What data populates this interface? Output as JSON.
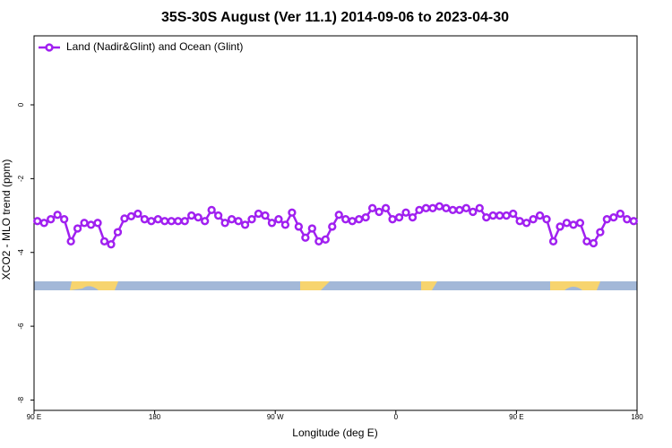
{
  "chart_data": {
    "type": "line",
    "title": "35S-30S August (Ver 11.1)   2014-09-06 to 2023-04-30",
    "x_label": "Longitude (deg E)",
    "y_label": "XCO2 - MLO trend (ppm)",
    "xlim": [
      90,
      540
    ],
    "ylim": [
      -8.28,
      1.87
    ],
    "xticks": [
      {
        "value": 90,
        "label": "90 E"
      },
      180,
      {
        "value": 270,
        "label": "90 W"
      },
      {
        "value": 360,
        "label": "0"
      },
      {
        "value": 450,
        "label": "90 E"
      },
      {
        "value": 540,
        "label": "180"
      }
    ],
    "yticks": [
      0,
      -2,
      -4,
      -6,
      -8
    ],
    "legend": "top-left",
    "x": [
      92.5,
      97.5,
      102.5,
      107.5,
      112.5,
      117.5,
      122.5,
      127.5,
      132.5,
      137.5,
      142.5,
      147.5,
      152.5,
      157.5,
      162.5,
      167.5,
      172.5,
      177.5,
      182.5,
      187.5,
      192.5,
      197.5,
      202.5,
      207.5,
      212.5,
      217.5,
      222.5,
      227.5,
      232.5,
      237.5,
      242.5,
      247.5,
      252.5,
      257.5,
      262.5,
      267.5,
      272.5,
      277.5,
      282.5,
      287.5,
      292.5,
      297.5,
      302.5,
      307.5,
      312.5,
      317.5,
      322.5,
      327.5,
      332.5,
      337.5,
      342.5,
      347.5,
      352.5,
      357.5,
      362.5,
      367.5,
      372.5,
      377.5,
      382.5,
      387.5,
      392.5,
      397.5,
      402.5,
      407.5,
      412.5,
      417.5,
      422.5,
      427.5,
      432.5,
      437.5,
      442.5,
      447.5,
      452.5,
      457.5,
      462.5,
      467.5,
      472.5,
      477.5,
      482.5,
      487.5,
      492.5,
      497.5,
      502.5,
      507.5,
      512.5,
      517.5,
      522.5,
      527.5,
      532.5,
      537.5
    ],
    "series": [
      {
        "name": "Land (Nadir&Glint) and Ocean (Glint)",
        "color": "#a020f0",
        "values": [
          -3.15,
          -3.2,
          -3.1,
          -2.98,
          -3.1,
          -3.7,
          -3.35,
          -3.2,
          -3.25,
          -3.2,
          -3.7,
          -3.78,
          -3.45,
          -3.08,
          -3.02,
          -2.95,
          -3.1,
          -3.15,
          -3.1,
          -3.15,
          -3.15,
          -3.15,
          -3.15,
          -3.0,
          -3.05,
          -3.15,
          -2.85,
          -3.0,
          -3.2,
          -3.1,
          -3.15,
          -3.25,
          -3.1,
          -2.95,
          -3.0,
          -3.2,
          -3.1,
          -3.25,
          -2.92,
          -3.3,
          -3.6,
          -3.35,
          -3.7,
          -3.65,
          -3.3,
          -2.98,
          -3.1,
          -3.15,
          -3.1,
          -3.05,
          -2.8,
          -2.9,
          -2.8,
          -3.1,
          -3.05,
          -2.92,
          -3.05,
          -2.85,
          -2.8,
          -2.8,
          -2.75,
          -2.8,
          -2.85,
          -2.85,
          -2.8,
          -2.9,
          -2.8,
          -3.05,
          -3.0,
          -3.0,
          -3.0,
          -2.95,
          -3.15,
          -3.2,
          -3.1,
          -3.0,
          -3.1,
          -3.7,
          -3.3,
          -3.2,
          -3.25,
          -3.2,
          -3.7,
          -3.75,
          -3.45,
          -3.1,
          -3.05,
          -2.95,
          -3.1,
          -3.15
        ]
      }
    ]
  }
}
